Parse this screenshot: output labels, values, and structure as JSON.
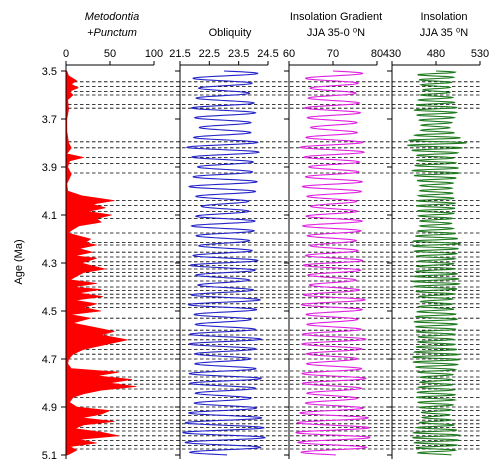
{
  "chart_data": {
    "type": "line",
    "y_axis": {
      "label": "Age (Ma)",
      "range": [
        3.5,
        5.1
      ],
      "ticks": [
        "3.5",
        "3.7",
        "3.9",
        "4.1",
        "4.3",
        "4.5",
        "4.7",
        "4.9",
        "5.1"
      ]
    },
    "dashed_event_lines_ma": [
      3.545,
      3.565,
      3.585,
      3.6,
      3.64,
      3.655,
      3.795,
      3.82,
      3.86,
      3.885,
      3.925,
      4.04,
      4.06,
      4.085,
      4.115,
      4.175,
      4.215,
      4.225,
      4.255,
      4.275,
      4.295,
      4.31,
      4.325,
      4.34,
      4.355,
      4.375,
      4.4,
      4.415,
      4.43,
      4.445,
      4.47,
      4.485,
      4.53,
      4.58,
      4.6,
      4.62,
      4.64,
      4.66,
      4.68,
      4.7,
      4.75,
      4.775,
      4.79,
      4.805,
      4.825,
      4.86,
      4.9,
      4.915,
      4.935,
      4.955,
      4.97,
      4.985,
      5.0,
      5.02,
      5.04,
      5.06,
      5.075
    ],
    "panels": [
      {
        "id": "metodontia",
        "title_line1": "Metodontia",
        "title_line2": "+Punctum",
        "x_ticks": [
          "0",
          "50",
          "100"
        ],
        "x_range": [
          0,
          100
        ],
        "series_color": "#ff0000",
        "style": "filled",
        "points": [
          [
            3.5,
            1
          ],
          [
            3.52,
            3
          ],
          [
            3.54,
            12
          ],
          [
            3.555,
            6
          ],
          [
            3.57,
            14
          ],
          [
            3.585,
            4
          ],
          [
            3.6,
            8
          ],
          [
            3.62,
            2
          ],
          [
            3.66,
            3
          ],
          [
            3.7,
            1
          ],
          [
            3.75,
            1
          ],
          [
            3.8,
            3
          ],
          [
            3.82,
            6
          ],
          [
            3.845,
            1
          ],
          [
            3.86,
            20
          ],
          [
            3.875,
            4
          ],
          [
            3.9,
            2
          ],
          [
            3.93,
            6
          ],
          [
            3.97,
            1
          ],
          [
            4.0,
            2
          ],
          [
            4.02,
            18
          ],
          [
            4.04,
            55
          ],
          [
            4.055,
            30
          ],
          [
            4.07,
            45
          ],
          [
            4.085,
            25
          ],
          [
            4.1,
            52
          ],
          [
            4.115,
            35
          ],
          [
            4.13,
            40
          ],
          [
            4.145,
            15
          ],
          [
            4.16,
            8
          ],
          [
            4.175,
            2
          ],
          [
            4.2,
            28
          ],
          [
            4.215,
            22
          ],
          [
            4.225,
            35
          ],
          [
            4.24,
            15
          ],
          [
            4.255,
            30
          ],
          [
            4.27,
            10
          ],
          [
            4.28,
            35
          ],
          [
            4.3,
            18
          ],
          [
            4.31,
            28
          ],
          [
            4.325,
            45
          ],
          [
            4.34,
            20
          ],
          [
            4.355,
            12
          ],
          [
            4.37,
            5
          ],
          [
            4.385,
            35
          ],
          [
            4.4,
            8
          ],
          [
            4.41,
            40
          ],
          [
            4.425,
            15
          ],
          [
            4.44,
            42
          ],
          [
            4.455,
            10
          ],
          [
            4.47,
            35
          ],
          [
            4.485,
            20
          ],
          [
            4.5,
            40
          ],
          [
            4.515,
            5
          ],
          [
            4.53,
            28
          ],
          [
            4.55,
            8
          ],
          [
            4.57,
            35
          ],
          [
            4.585,
            55
          ],
          [
            4.6,
            40
          ],
          [
            4.62,
            70
          ],
          [
            4.64,
            45
          ],
          [
            4.66,
            20
          ],
          [
            4.68,
            8
          ],
          [
            4.7,
            3
          ],
          [
            4.72,
            2
          ],
          [
            4.74,
            6
          ],
          [
            4.755,
            60
          ],
          [
            4.77,
            35
          ],
          [
            4.785,
            75
          ],
          [
            4.8,
            50
          ],
          [
            4.815,
            80
          ],
          [
            4.83,
            40
          ],
          [
            4.845,
            20
          ],
          [
            4.86,
            8
          ],
          [
            4.88,
            4
          ],
          [
            4.9,
            12
          ],
          [
            4.915,
            50
          ],
          [
            4.93,
            40
          ],
          [
            4.945,
            18
          ],
          [
            4.96,
            55
          ],
          [
            4.975,
            20
          ],
          [
            4.99,
            10
          ],
          [
            5.005,
            40
          ],
          [
            5.02,
            60
          ],
          [
            5.035,
            15
          ],
          [
            5.05,
            35
          ],
          [
            5.065,
            5
          ],
          [
            5.08,
            12
          ],
          [
            5.1,
            2
          ]
        ]
      },
      {
        "id": "obliquity",
        "title_line1": "Obliquity",
        "title_line2": "",
        "x_ticks": [
          "21.5",
          "22.5",
          "23.5",
          "24.5"
        ],
        "x_range": [
          21.5,
          24.5
        ],
        "series_color": "#2424c8",
        "style": "oscillation",
        "period_ma": 0.041,
        "modulation": [
          [
            3.5,
            0.8
          ],
          [
            3.58,
            0.55
          ],
          [
            3.66,
            0.75
          ],
          [
            3.74,
            0.55
          ],
          [
            3.82,
            0.85
          ],
          [
            3.9,
            0.6
          ],
          [
            3.98,
            0.8
          ],
          [
            4.06,
            0.5
          ],
          [
            4.14,
            0.75
          ],
          [
            4.22,
            0.55
          ],
          [
            4.3,
            0.8
          ],
          [
            4.38,
            0.55
          ],
          [
            4.46,
            0.85
          ],
          [
            4.54,
            0.6
          ],
          [
            4.62,
            0.85
          ],
          [
            4.7,
            0.6
          ],
          [
            4.78,
            0.85
          ],
          [
            4.86,
            0.6
          ],
          [
            4.94,
            0.85
          ],
          [
            5.02,
            0.95
          ],
          [
            5.1,
            0.75
          ]
        ]
      },
      {
        "id": "insolation-gradient",
        "title_line1": "Insolation Gradient",
        "title_line2": "JJA 35-0 ⁰N",
        "x_ticks": [
          "60",
          "70",
          "80"
        ],
        "x_range": [
          60,
          80
        ],
        "series_color": "#e020e0",
        "style": "oscillation",
        "period_ma": 0.041,
        "modulation": [
          [
            3.5,
            0.7
          ],
          [
            3.58,
            0.5
          ],
          [
            3.66,
            0.65
          ],
          [
            3.74,
            0.5
          ],
          [
            3.82,
            0.75
          ],
          [
            3.9,
            0.55
          ],
          [
            3.98,
            0.7
          ],
          [
            4.06,
            0.5
          ],
          [
            4.14,
            0.7
          ],
          [
            4.22,
            0.5
          ],
          [
            4.3,
            0.7
          ],
          [
            4.38,
            0.5
          ],
          [
            4.46,
            0.75
          ],
          [
            4.54,
            0.55
          ],
          [
            4.62,
            0.75
          ],
          [
            4.7,
            0.55
          ],
          [
            4.78,
            0.75
          ],
          [
            4.86,
            0.55
          ],
          [
            4.94,
            0.8
          ],
          [
            5.02,
            0.85
          ],
          [
            5.1,
            0.7
          ]
        ]
      },
      {
        "id": "insolation",
        "title_line1": "Insolation",
        "title_line2": "JJA 35 ⁰N",
        "x_ticks": [
          "430",
          "480",
          "530"
        ],
        "x_range": [
          430,
          530
        ],
        "series_color": "#207a20",
        "style": "oscillation",
        "period_ma": 0.021,
        "modulation": [
          [
            3.5,
            0.45
          ],
          [
            3.58,
            0.3
          ],
          [
            3.66,
            0.5
          ],
          [
            3.74,
            0.3
          ],
          [
            3.8,
            0.7
          ],
          [
            3.86,
            0.4
          ],
          [
            3.92,
            0.55
          ],
          [
            3.98,
            0.35
          ],
          [
            4.06,
            0.45
          ],
          [
            4.14,
            0.35
          ],
          [
            4.22,
            0.55
          ],
          [
            4.3,
            0.4
          ],
          [
            4.38,
            0.55
          ],
          [
            4.46,
            0.35
          ],
          [
            4.54,
            0.5
          ],
          [
            4.62,
            0.4
          ],
          [
            4.7,
            0.55
          ],
          [
            4.78,
            0.35
          ],
          [
            4.86,
            0.45
          ],
          [
            4.94,
            0.3
          ],
          [
            5.02,
            0.55
          ],
          [
            5.1,
            0.4
          ]
        ]
      }
    ]
  }
}
